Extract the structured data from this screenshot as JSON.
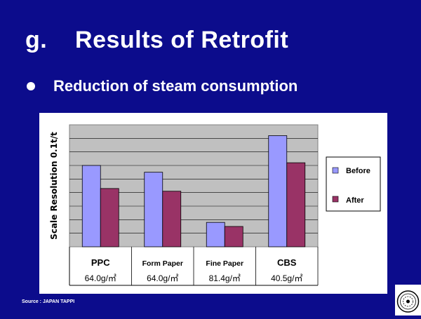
{
  "slide": {
    "title_letter": "g.",
    "title_text": "Results of Retrofit",
    "subtitle": "Reduction of steam consumption",
    "source": "Source : JAPAN TAPPI"
  },
  "chart_data": {
    "type": "bar",
    "categories": [
      "PPC",
      "Form Paper",
      "Fine Paper",
      "CBS"
    ],
    "category_sublabels": [
      "64.0g/㎡",
      "64.0g/㎡",
      "81.4g/㎡",
      "40.5g/㎡"
    ],
    "series": [
      {
        "name": "Before",
        "values": [
          6.0,
          5.5,
          1.8,
          8.2
        ],
        "color": "#9999ff"
      },
      {
        "name": "After",
        "values": [
          4.3,
          4.1,
          1.5,
          6.2
        ],
        "color": "#993366"
      }
    ],
    "ylabel": "Scale Resolution  0.1t/t",
    "ylim": [
      0,
      9
    ],
    "y_gridlines": 9,
    "y_tick_labels_shown": false,
    "plot_background": "#c0c0c0",
    "legend_position": "right",
    "grid": true
  }
}
